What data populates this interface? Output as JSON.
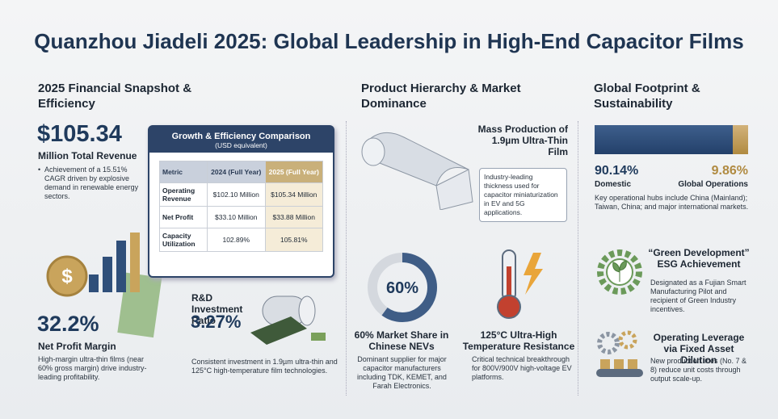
{
  "header": {
    "title": "Quanzhou Jiadeli 2025: Global Leadership in High-End Capacitor Films"
  },
  "financial": {
    "heading": "2025 Financial Snapshot & Efficiency",
    "revenue": "$105.34",
    "revenue_label": "Million Total Revenue",
    "revenue_note": "Achievement of a 15.51% CAGR driven by explosive demand in renewable energy sectors.",
    "table": {
      "title": "Growth & Efficiency Comparison",
      "subtitle": "(USD equivalent)",
      "header": [
        "Metric",
        "2024 (Full Year)",
        "2025 (Full Year)"
      ],
      "rows": [
        [
          "Operating Revenue",
          "$102.10 Million",
          "$105.34 Million"
        ],
        [
          "Net Profit",
          "$33.10 Million",
          "$33.88 Million"
        ],
        [
          "Capacity Utilization",
          "102.89%",
          "105.81%"
        ]
      ]
    },
    "margin": "32.2%",
    "margin_label": "Net Profit Margin",
    "margin_note": "High-margin ultra-thin films (near 60% gross margin) drive industry-leading profitability.",
    "rd_label": "R&D Investment Ratio",
    "rd": "3.27%",
    "rd_note": "Consistent investment in 1.9µm ultra-thin and 125°C high-temperature film technologies."
  },
  "product": {
    "heading": "Product Hierarchy & Market Dominance",
    "film_title": "Mass Production of 1.9µm Ultra-Thin Film",
    "film_note": "Industry-leading thickness used for capacitor miniaturization in EV and 5G applications.",
    "share": {
      "value": 60,
      "label": "60%"
    },
    "share_title": "60% Market Share in Chinese NEVs",
    "share_note": "Dominant supplier for major capacitor manufacturers including TDK, KEMET, and Farah Electronics.",
    "temp_title": "125°C Ultra-High Temperature Resistance",
    "temp_note": "Critical technical breakthrough for 800V/900V high-voltage EV platforms."
  },
  "global": {
    "heading": "Global Footprint & Sustainability",
    "domestic": {
      "value": 90.14,
      "label": "90.14%"
    },
    "domestic_label": "Domestic",
    "overseas": {
      "value": 9.86,
      "label": "9.86%"
    },
    "overseas_label": "Global Operations",
    "hubs": "Key operational hubs include China (Mainland); Taiwan, China; and major international markets.",
    "esg_title": "“Green Development” ESG Achievement",
    "esg_note": "Designated as a Fujian Smart Manufacturing Pilot and recipient of Green Industry incentives.",
    "lev_title": "Operating Leverage via Fixed Asset Dilution",
    "lev_note": "New production lines (No. 7 & 8) reduce unit costs through output scale-up."
  }
}
